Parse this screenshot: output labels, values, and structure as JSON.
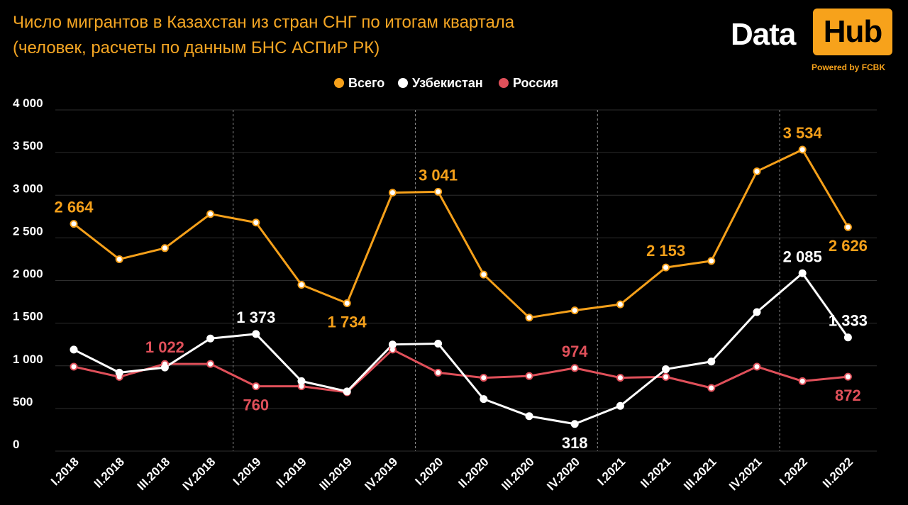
{
  "header": {
    "title_line1": "Число мигрантов в Казахстан из стран СНГ по итогам квартала",
    "title_line2": "(человек, расчеты по данным БНС АСПиР РК)"
  },
  "logo": {
    "data": "Data",
    "hub": "Hub",
    "powered": "Powered by FCBK"
  },
  "colors": {
    "orange": "#f5a01a",
    "white": "#ffffff",
    "red": "#e0505a",
    "grid": "#333333"
  },
  "chart_data": {
    "type": "line",
    "categories": [
      "I.2018",
      "II.2018",
      "III.2018",
      "IV.2018",
      "I.2019",
      "II.2019",
      "III.2019",
      "IV.2019",
      "I.2020",
      "II.2020",
      "III.2020",
      "IV.2020",
      "I.2021",
      "II.2021",
      "III.2021",
      "IV.2021",
      "I.2022",
      "II.2022"
    ],
    "ylim": [
      0,
      4000
    ],
    "yticks": [
      0,
      500,
      1000,
      1500,
      2000,
      2500,
      3000,
      3500,
      4000
    ],
    "ytick_labels": [
      "0",
      "500",
      "1 000",
      "1 500",
      "2 000",
      "2 500",
      "3 000",
      "3 500",
      "4 000"
    ],
    "legend_position": "top-center",
    "year_separators_after": [
      3,
      7,
      11,
      15
    ],
    "series": [
      {
        "name": "Всего",
        "color": "#f5a01a",
        "values": [
          2664,
          2250,
          2380,
          2780,
          2680,
          1950,
          1734,
          3030,
          3041,
          2070,
          1565,
          1650,
          1720,
          2153,
          2230,
          3280,
          3534,
          2626
        ],
        "labels": [
          {
            "index": 0,
            "text": "2 664",
            "pos": "above"
          },
          {
            "index": 6,
            "text": "1 734",
            "pos": "below"
          },
          {
            "index": 8,
            "text": "3 041",
            "pos": "above"
          },
          {
            "index": 13,
            "text": "2 153",
            "pos": "above"
          },
          {
            "index": 16,
            "text": "3 534",
            "pos": "above"
          },
          {
            "index": 17,
            "text": "2 626",
            "pos": "below"
          }
        ]
      },
      {
        "name": "Узбекистан",
        "color": "#ffffff",
        "values": [
          1190,
          920,
          980,
          1320,
          1373,
          820,
          700,
          1250,
          1260,
          610,
          410,
          318,
          530,
          960,
          1050,
          1630,
          2085,
          1333
        ],
        "labels": [
          {
            "index": 4,
            "text": "1 373",
            "pos": "above"
          },
          {
            "index": 11,
            "text": "318",
            "pos": "below"
          },
          {
            "index": 16,
            "text": "2 085",
            "pos": "above"
          },
          {
            "index": 17,
            "text": "1 333",
            "pos": "above"
          }
        ]
      },
      {
        "name": "Россия",
        "color": "#e0505a",
        "values": [
          990,
          870,
          1022,
          1022,
          760,
          760,
          690,
          1190,
          920,
          860,
          880,
          974,
          860,
          870,
          740,
          990,
          820,
          872
        ],
        "labels": [
          {
            "index": 2,
            "text": "1 022",
            "pos": "above"
          },
          {
            "index": 4,
            "text": "760",
            "pos": "below"
          },
          {
            "index": 11,
            "text": "974",
            "pos": "above"
          },
          {
            "index": 17,
            "text": "872",
            "pos": "below"
          }
        ]
      }
    ]
  }
}
